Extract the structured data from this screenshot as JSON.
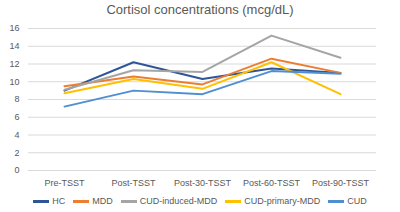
{
  "chart_data": {
    "type": "line",
    "title": "Cortisol concentrations (mcg/dL)",
    "categories": [
      "Pre-TSST",
      "Post-TSST",
      "Post-30-TSST",
      "Post-60-TSST",
      "Post-90-TSST"
    ],
    "series": [
      {
        "name": "HC",
        "color": "#2e5597",
        "values": [
          9.0,
          12.2,
          10.3,
          11.5,
          11.0
        ]
      },
      {
        "name": "MDD",
        "color": "#ed7d31",
        "values": [
          9.5,
          10.6,
          9.7,
          12.6,
          11.0
        ]
      },
      {
        "name": "CUD-induced-MDD",
        "color": "#a5a5a5",
        "values": [
          9.1,
          11.3,
          11.1,
          15.2,
          12.7
        ]
      },
      {
        "name": "CUD-primary-MDD",
        "color": "#ffc000",
        "values": [
          8.7,
          10.3,
          9.2,
          12.2,
          8.6
        ]
      },
      {
        "name": "CUD",
        "color": "#4f8fd0",
        "values": [
          7.2,
          9.0,
          8.6,
          11.2,
          10.9
        ]
      }
    ],
    "ylim": [
      0,
      16
    ],
    "yticks": [
      0,
      2,
      4,
      6,
      8,
      10,
      12,
      14,
      16
    ],
    "grid": true,
    "legend": "bottom"
  }
}
